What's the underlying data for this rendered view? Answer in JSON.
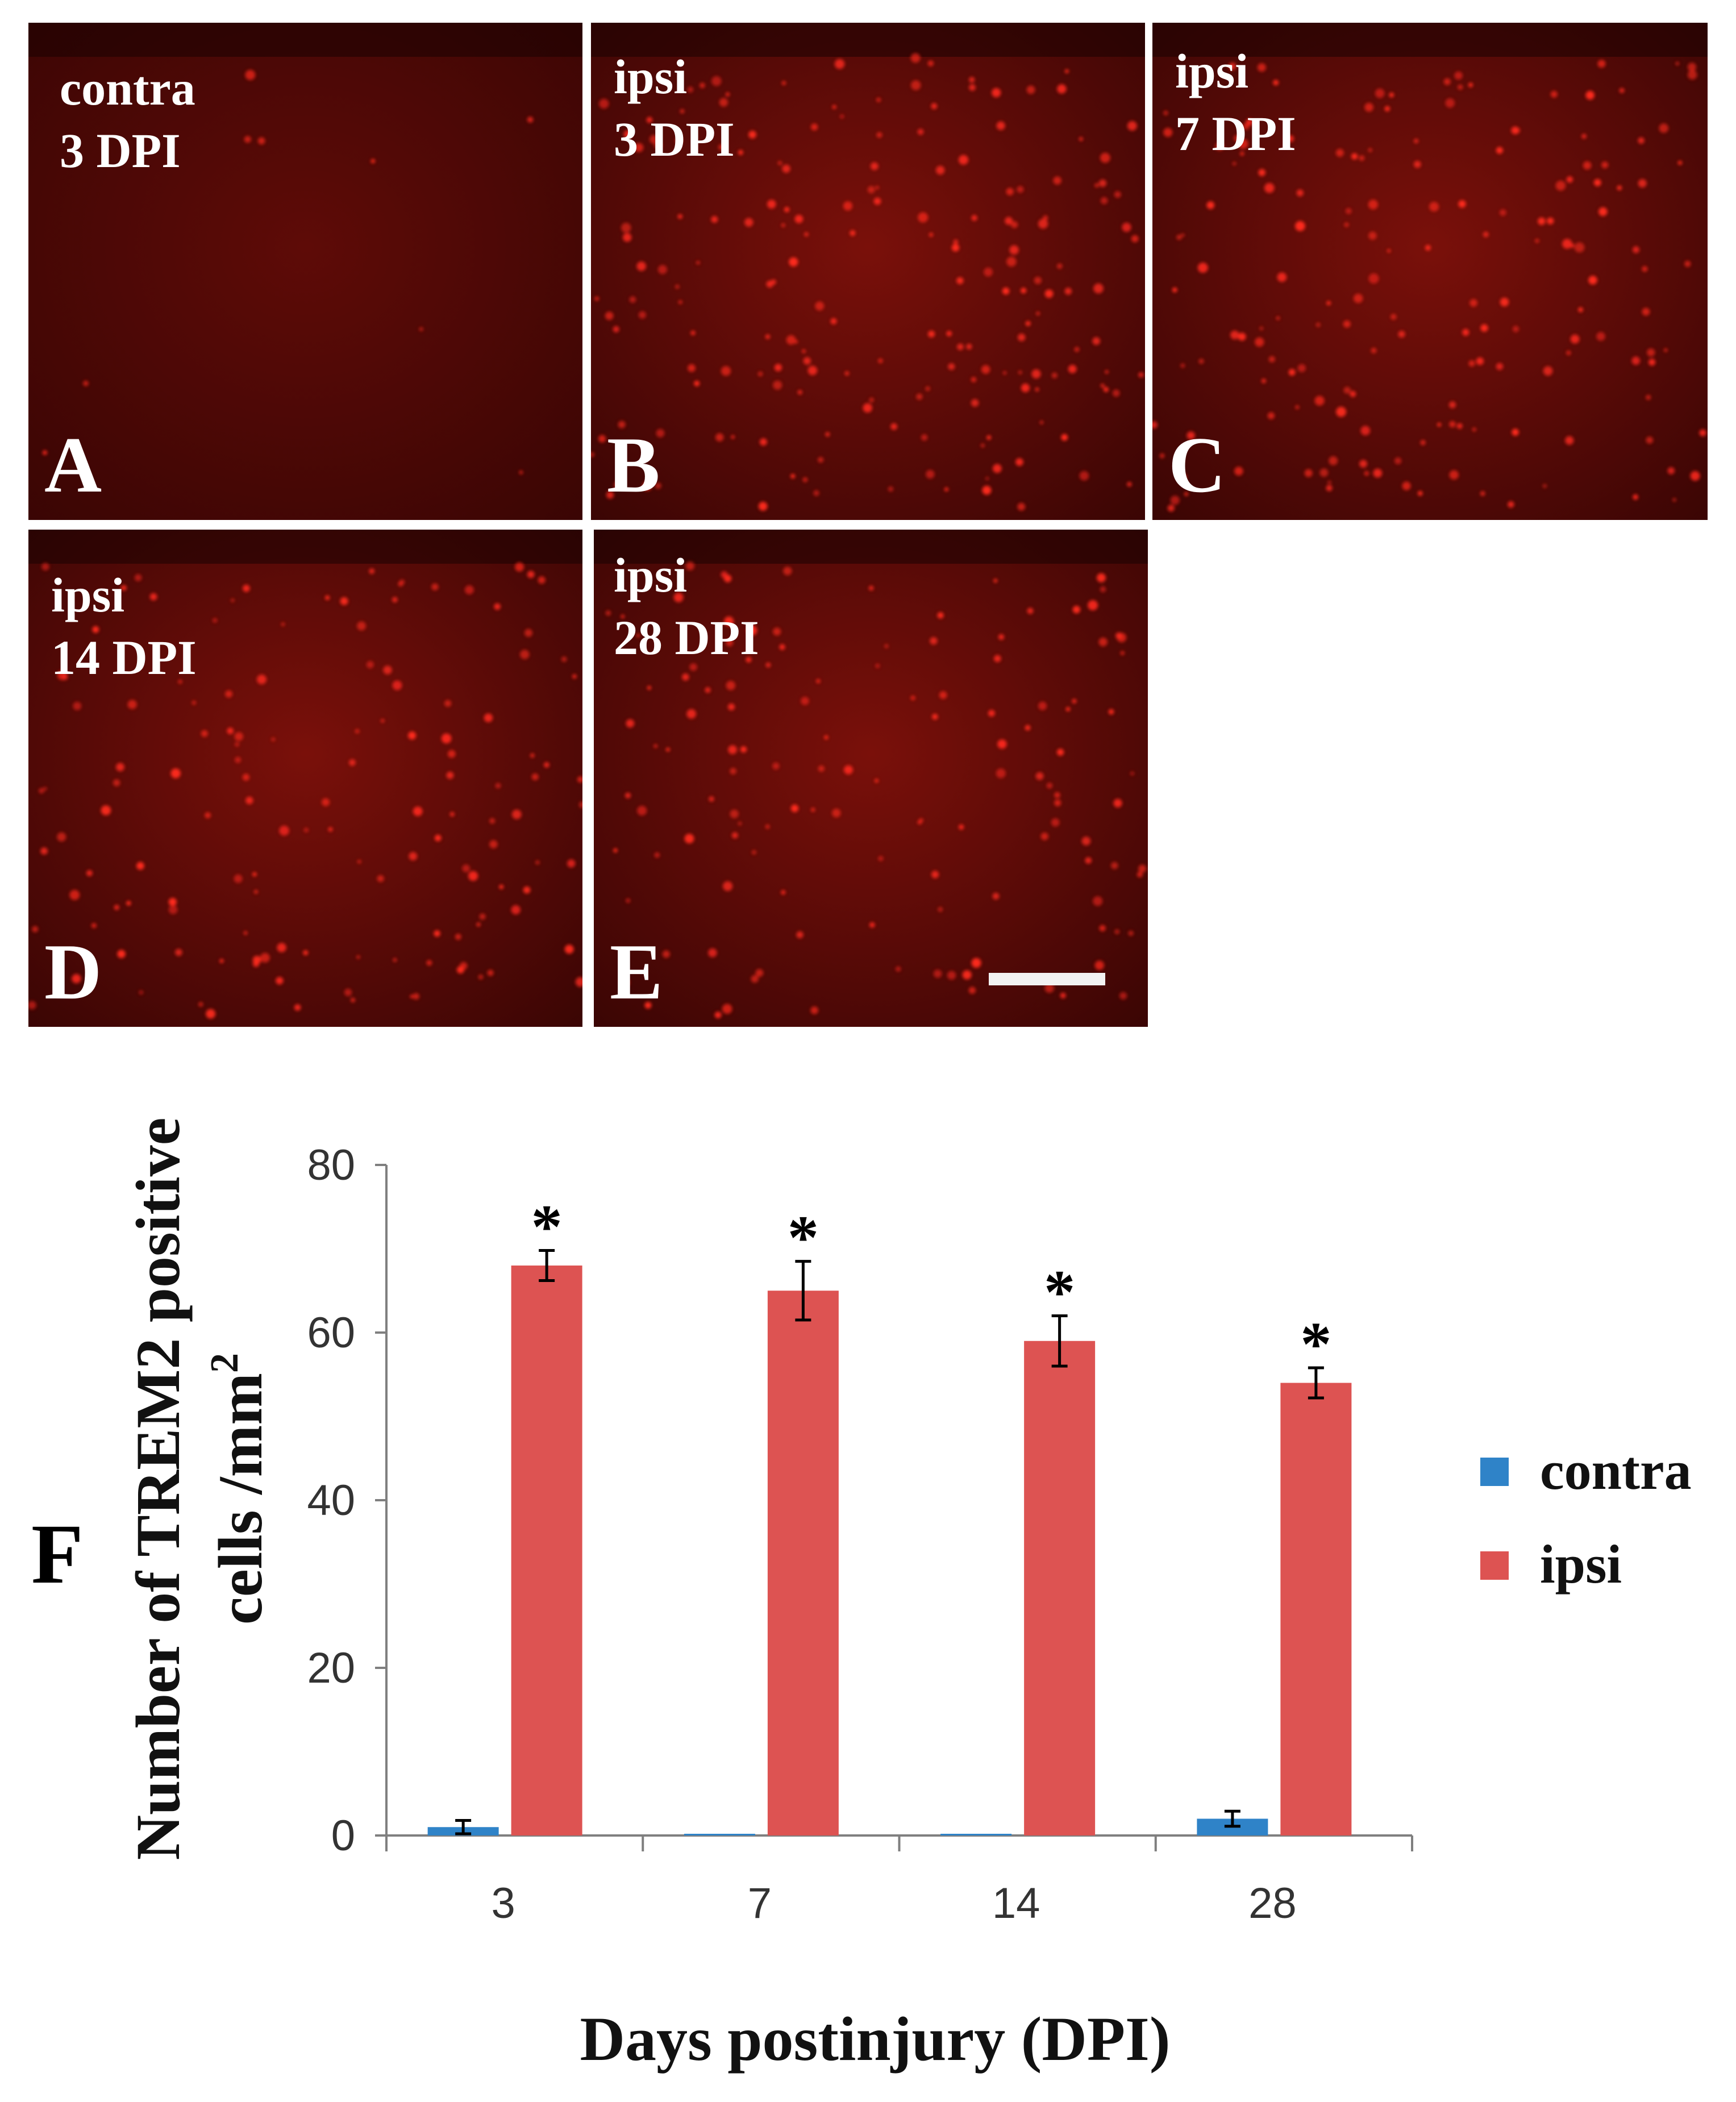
{
  "panels": [
    {
      "id": "A",
      "condition": "contra\n3 DPI",
      "brightness": 0.05
    },
    {
      "id": "B",
      "condition": "ipsi\n3 DPI",
      "brightness": 1.0
    },
    {
      "id": "C",
      "condition": "ipsi\n7 DPI",
      "brightness": 0.9
    },
    {
      "id": "D",
      "condition": "ipsi\n14 DPI",
      "brightness": 0.75
    },
    {
      "id": "E",
      "condition": "ipsi\n28 DPI",
      "brightness": 0.7
    }
  ],
  "colors": {
    "micrograph_bg": "#5a0a06",
    "micrograph_dark": "#3a0504",
    "cell": "#ff2a1e",
    "contra": "#2f83c8",
    "ipsi": "#dd5352",
    "axis": "#7f7f7f"
  },
  "chart_panel_label": "F",
  "chart_data": {
    "type": "bar",
    "categories": [
      "3",
      "7",
      "14",
      "28"
    ],
    "series": [
      {
        "name": "contra",
        "color": "#2f83c8",
        "values": [
          1,
          0,
          0,
          2
        ],
        "errors": [
          0.8,
          0.2,
          0.2,
          0.9
        ]
      },
      {
        "name": "ipsi",
        "color": "#dd5352",
        "values": [
          68,
          65,
          59,
          54
        ],
        "errors": [
          1.8,
          3.5,
          3.0,
          1.8
        ]
      }
    ],
    "significance_marks": [
      "*",
      "*",
      "*",
      "*"
    ],
    "ylabel_line1": "Number of TREM2 positive",
    "ylabel_line2": "cells /mm",
    "ylabel_superscript": "2",
    "xlabel": "Days postinjury (DPI)",
    "ylim": [
      0,
      80
    ],
    "yticks": [
      "0",
      "20",
      "40",
      "60",
      "80"
    ],
    "legend_position": "right",
    "grid": false
  }
}
